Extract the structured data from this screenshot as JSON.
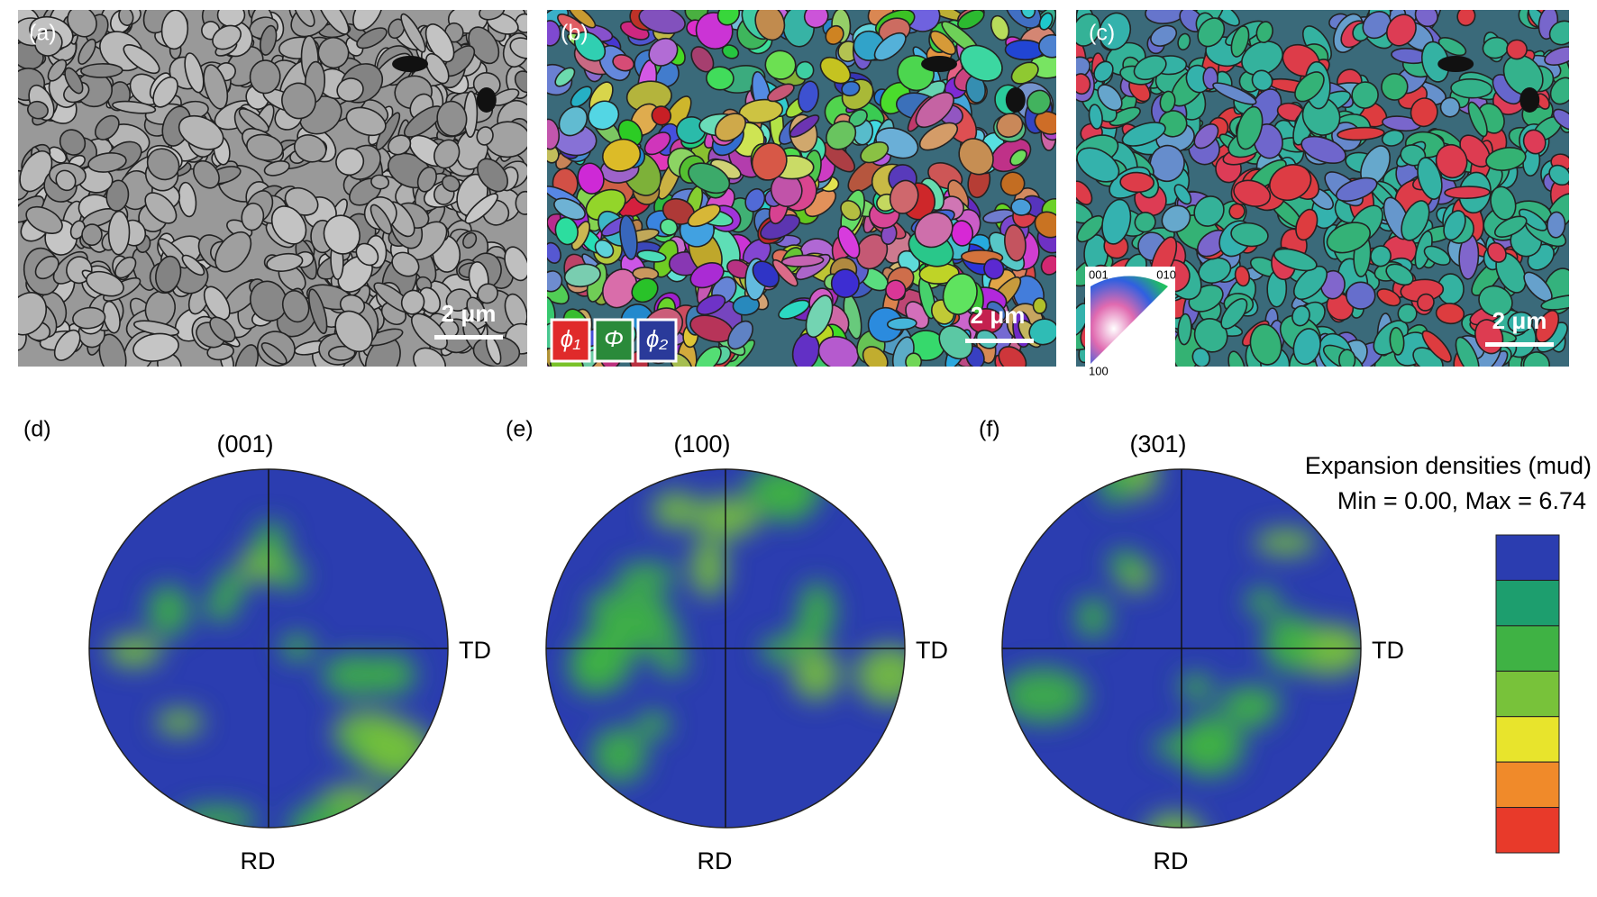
{
  "panels": [
    {
      "label": "(a)",
      "scale_bar": "2 μm"
    },
    {
      "label": "(b)",
      "scale_bar": "2 μm",
      "euler_legend": [
        "ϕ₁",
        "Φ",
        "ϕ₂"
      ]
    },
    {
      "label": "(c)",
      "scale_bar": "2 μm",
      "ipf_legend": [
        "001",
        "010",
        "100"
      ]
    }
  ],
  "pole_figures": [
    {
      "label": "(d)",
      "title": "(001)",
      "right_axis": "TD",
      "bottom_axis": "RD"
    },
    {
      "label": "(e)",
      "title": "(100)",
      "right_axis": "TD",
      "bottom_axis": "RD"
    },
    {
      "label": "(f)",
      "title": "(301)",
      "right_axis": "TD",
      "bottom_axis": "RD"
    }
  ],
  "density_legend": {
    "title": "Expansion densities (mud)",
    "range": "Min = 0.00, Max = 6.74",
    "colors": [
      "#2b3db0",
      "#1d9e6e",
      "#3fb244",
      "#78c23a",
      "#e8e42c",
      "#f08a2a",
      "#e83a2a"
    ]
  }
}
